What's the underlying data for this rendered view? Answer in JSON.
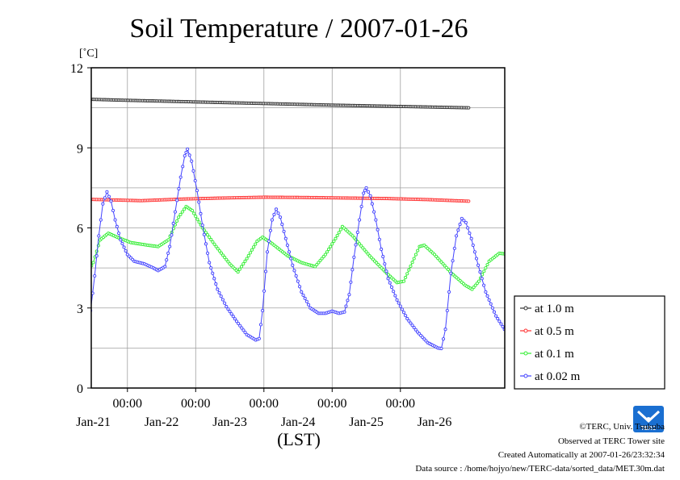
{
  "chart_data": {
    "type": "line",
    "title": "Soil Temperature / 2007-01-26",
    "y_unit": "[˚C]",
    "xlabel": "(LST)",
    "ylim": [
      0,
      12
    ],
    "y_ticks": [
      "0",
      "3",
      "6",
      "9",
      "12"
    ],
    "x_range_days": [
      0,
      6
    ],
    "x_time_ticks": [
      "00:00",
      "00:00",
      "00:00",
      "00:00",
      "00:00"
    ],
    "x_date_labels": [
      "Jan-21",
      "Jan-22",
      "Jan-23",
      "Jan-24",
      "Jan-25",
      "Jan-26"
    ],
    "grid": true,
    "legend_position": "right",
    "series": [
      {
        "name": "at 1.0 m",
        "color": "#303030",
        "points": [
          [
            0,
            10.85
          ],
          [
            1,
            10.78
          ],
          [
            2,
            10.72
          ],
          [
            3,
            10.66
          ],
          [
            4,
            10.6
          ],
          [
            5,
            10.55
          ],
          [
            6,
            10.5
          ]
        ]
      },
      {
        "name": "at 0.5 m",
        "color": "#ff3030",
        "points": [
          [
            0,
            7.1
          ],
          [
            0.6,
            7.06
          ],
          [
            1.2,
            7.02
          ],
          [
            1.8,
            7.08
          ],
          [
            2.4,
            7.12
          ],
          [
            3,
            7.15
          ],
          [
            3.6,
            7.14
          ],
          [
            4.2,
            7.12
          ],
          [
            4.8,
            7.1
          ],
          [
            5.4,
            7.06
          ],
          [
            6,
            7.0
          ]
        ]
      },
      {
        "name": "at 0.1 m",
        "color": "#33ee33",
        "points": [
          [
            0,
            4.65
          ],
          [
            0.2,
            4.65
          ],
          [
            0.3,
            4.6
          ],
          [
            0.42,
            4.35
          ],
          [
            0.5,
            4.7
          ],
          [
            0.6,
            5.55
          ],
          [
            0.72,
            5.8
          ],
          [
            0.85,
            5.65
          ],
          [
            1.05,
            5.45
          ],
          [
            1.3,
            5.35
          ],
          [
            1.45,
            5.3
          ],
          [
            1.6,
            5.55
          ],
          [
            1.75,
            6.4
          ],
          [
            1.86,
            6.8
          ],
          [
            1.95,
            6.65
          ],
          [
            2.1,
            6.0
          ],
          [
            2.3,
            5.3
          ],
          [
            2.5,
            4.65
          ],
          [
            2.62,
            4.35
          ],
          [
            2.75,
            4.85
          ],
          [
            2.9,
            5.5
          ],
          [
            2.98,
            5.65
          ],
          [
            3.1,
            5.45
          ],
          [
            3.35,
            4.95
          ],
          [
            3.55,
            4.7
          ],
          [
            3.75,
            4.55
          ],
          [
            3.9,
            5.0
          ],
          [
            4.05,
            5.6
          ],
          [
            4.15,
            6.05
          ],
          [
            4.3,
            5.7
          ],
          [
            4.55,
            4.95
          ],
          [
            4.8,
            4.3
          ],
          [
            4.95,
            3.95
          ],
          [
            5.05,
            4.0
          ],
          [
            5.2,
            4.85
          ],
          [
            5.28,
            5.3
          ],
          [
            5.35,
            5.35
          ],
          [
            5.5,
            5.0
          ],
          [
            5.75,
            4.3
          ],
          [
            5.95,
            3.85
          ],
          [
            6.05,
            3.7
          ],
          [
            6.15,
            4.0
          ],
          [
            6.3,
            4.75
          ],
          [
            6.45,
            5.05
          ],
          [
            6.6,
            5.0
          ],
          [
            6.75,
            4.95
          ]
        ]
      },
      {
        "name": "at 0.02 m",
        "color": "#4444ff",
        "points": [
          [
            0,
            3.78
          ],
          [
            0.12,
            3.7
          ],
          [
            0.22,
            3.3
          ],
          [
            0.3,
            2.85
          ],
          [
            0.38,
            2.55
          ],
          [
            0.42,
            2.5
          ],
          [
            0.46,
            2.9
          ],
          [
            0.52,
            4.2
          ],
          [
            0.58,
            5.7
          ],
          [
            0.64,
            6.9
          ],
          [
            0.7,
            7.35
          ],
          [
            0.76,
            7.0
          ],
          [
            0.82,
            6.3
          ],
          [
            0.9,
            5.55
          ],
          [
            1.0,
            5.0
          ],
          [
            1.1,
            4.75
          ],
          [
            1.25,
            4.65
          ],
          [
            1.38,
            4.5
          ],
          [
            1.45,
            4.4
          ],
          [
            1.55,
            4.55
          ],
          [
            1.62,
            5.3
          ],
          [
            1.7,
            6.6
          ],
          [
            1.78,
            7.9
          ],
          [
            1.84,
            8.7
          ],
          [
            1.88,
            8.95
          ],
          [
            1.94,
            8.5
          ],
          [
            2.02,
            7.4
          ],
          [
            2.1,
            6.1
          ],
          [
            2.2,
            4.7
          ],
          [
            2.32,
            3.7
          ],
          [
            2.45,
            3.05
          ],
          [
            2.6,
            2.5
          ],
          [
            2.75,
            2.0
          ],
          [
            2.88,
            1.8
          ],
          [
            2.93,
            1.85
          ],
          [
            2.98,
            2.9
          ],
          [
            3.05,
            5.1
          ],
          [
            3.12,
            6.3
          ],
          [
            3.18,
            6.7
          ],
          [
            3.24,
            6.4
          ],
          [
            3.32,
            5.6
          ],
          [
            3.42,
            4.6
          ],
          [
            3.55,
            3.6
          ],
          [
            3.68,
            3.0
          ],
          [
            3.8,
            2.8
          ],
          [
            3.9,
            2.8
          ],
          [
            4.0,
            2.88
          ],
          [
            4.1,
            2.8
          ],
          [
            4.18,
            2.85
          ],
          [
            4.25,
            3.5
          ],
          [
            4.32,
            4.9
          ],
          [
            4.4,
            6.3
          ],
          [
            4.46,
            7.3
          ],
          [
            4.5,
            7.5
          ],
          [
            4.56,
            7.2
          ],
          [
            4.64,
            6.3
          ],
          [
            4.72,
            5.2
          ],
          [
            4.82,
            4.1
          ],
          [
            4.95,
            3.3
          ],
          [
            5.1,
            2.6
          ],
          [
            5.25,
            2.1
          ],
          [
            5.4,
            1.7
          ],
          [
            5.55,
            1.5
          ],
          [
            5.6,
            1.48
          ],
          [
            5.66,
            2.2
          ],
          [
            5.74,
            4.3
          ],
          [
            5.82,
            5.7
          ],
          [
            5.9,
            6.35
          ],
          [
            5.96,
            6.2
          ],
          [
            6.04,
            5.6
          ],
          [
            6.14,
            4.6
          ],
          [
            6.25,
            3.6
          ],
          [
            6.4,
            2.7
          ],
          [
            6.55,
            2.1
          ],
          [
            6.7,
            1.65
          ],
          [
            6.82,
            1.38
          ],
          [
            6.92,
            1.32
          ],
          [
            6.98,
            1.5
          ],
          [
            7.04,
            2.9
          ],
          [
            7.12,
            4.8
          ],
          [
            7.2,
            5.7
          ],
          [
            7.26,
            5.98
          ],
          [
            7.32,
            5.85
          ],
          [
            7.4,
            5.3
          ],
          [
            7.48,
            4.6
          ],
          [
            7.56,
            4.2
          ],
          [
            7.62,
            4.15
          ],
          [
            7.7,
            4.3
          ],
          [
            7.76,
            4.4
          ]
        ]
      }
    ]
  },
  "footer": {
    "copyright": "©TERC, Univ. Tsukuba",
    "observed": "Observed at TERC Tower site",
    "created": "Created Automatically at 2007-01-26/23:32:34",
    "source": "Data source : /home/hojyo/new/TERC-data/sorted_data/MET.30m.dat"
  },
  "logo": {
    "text": "TERC",
    "color": "#1a6fd1"
  }
}
